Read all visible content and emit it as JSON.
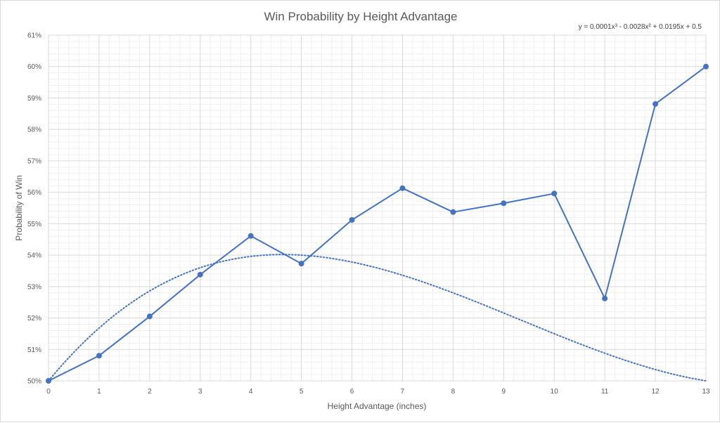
{
  "chart_data": {
    "type": "line",
    "title": "Win Probability by Height Advantage",
    "xlabel": "Height Advantage (inches)",
    "ylabel": "Probability of Win",
    "x": [
      0,
      1,
      2,
      3,
      4,
      5,
      6,
      7,
      8,
      9,
      10,
      11,
      12,
      13
    ],
    "xlim": [
      0,
      13
    ],
    "ylim": [
      0.5,
      0.61
    ],
    "y_ticks": [
      "50%",
      "51%",
      "52%",
      "53%",
      "54%",
      "55%",
      "56%",
      "57%",
      "58%",
      "59%",
      "60%",
      "61%"
    ],
    "x_ticks": [
      "0",
      "1",
      "2",
      "3",
      "4",
      "5",
      "6",
      "7",
      "8",
      "9",
      "10",
      "11",
      "12",
      "13"
    ],
    "grid": true,
    "minor_grid": true,
    "legend": "none",
    "series": [
      {
        "values": [
          0.5,
          0.508,
          0.5205,
          0.5338,
          0.5461,
          0.5373,
          0.5512,
          0.5613,
          0.5537,
          0.5565,
          0.5596,
          0.5262,
          0.5881,
          0.6
        ],
        "color": "#4472c4",
        "markers": true
      }
    ],
    "trendline": {
      "type": "polynomial",
      "order": 3,
      "coefficients": [
        0.0001,
        -0.0028,
        0.0195,
        0.5
      ],
      "equation": "y = 0.0001x³ - 0.0028x² + 0.0195x + 0.5",
      "style": "dotted",
      "color": "#4472c4"
    }
  }
}
